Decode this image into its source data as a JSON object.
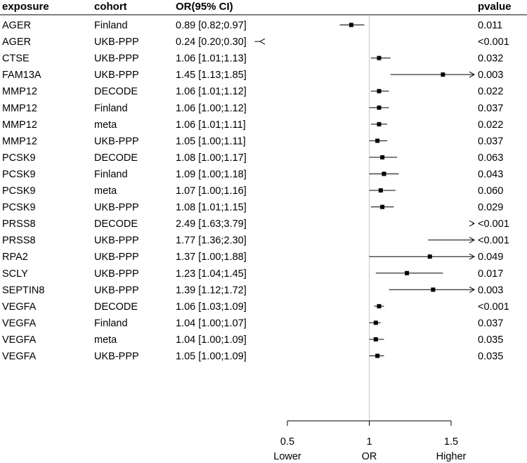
{
  "chart_data": {
    "type": "forest",
    "columns": {
      "exposure": "exposure",
      "cohort": "cohort",
      "estimate": "OR(95% CI)",
      "pvalue": "pvalue"
    },
    "rows": [
      {
        "exposure": "AGER",
        "cohort": "Finland",
        "or": 0.89,
        "lo": 0.82,
        "hi": 0.97,
        "text": "0.89 [0.82;0.97]",
        "pvalue": "0.011"
      },
      {
        "exposure": "AGER",
        "cohort": "UKB-PPP",
        "or": 0.24,
        "lo": 0.2,
        "hi": 0.3,
        "text": "0.24 [0.20;0.30]",
        "pvalue": "<0.001"
      },
      {
        "exposure": "CTSE",
        "cohort": "UKB-PPP",
        "or": 1.06,
        "lo": 1.01,
        "hi": 1.13,
        "text": "1.06 [1.01;1.13]",
        "pvalue": "0.032"
      },
      {
        "exposure": "FAM13A",
        "cohort": "UKB-PPP",
        "or": 1.45,
        "lo": 1.13,
        "hi": 1.85,
        "text": "1.45 [1.13;1.85]",
        "pvalue": "0.003"
      },
      {
        "exposure": "MMP12",
        "cohort": "DECODE",
        "or": 1.06,
        "lo": 1.01,
        "hi": 1.12,
        "text": "1.06 [1.01;1.12]",
        "pvalue": "0.022"
      },
      {
        "exposure": "MMP12",
        "cohort": "Finland",
        "or": 1.06,
        "lo": 1.0,
        "hi": 1.12,
        "text": "1.06 [1.00;1.12]",
        "pvalue": "0.037"
      },
      {
        "exposure": "MMP12",
        "cohort": "meta",
        "or": 1.06,
        "lo": 1.01,
        "hi": 1.11,
        "text": "1.06 [1.01;1.11]",
        "pvalue": "0.022"
      },
      {
        "exposure": "MMP12",
        "cohort": "UKB-PPP",
        "or": 1.05,
        "lo": 1.0,
        "hi": 1.11,
        "text": "1.05 [1.00;1.11]",
        "pvalue": "0.037"
      },
      {
        "exposure": "PCSK9",
        "cohort": "DECODE",
        "or": 1.08,
        "lo": 1.0,
        "hi": 1.17,
        "text": "1.08 [1.00;1.17]",
        "pvalue": "0.063"
      },
      {
        "exposure": "PCSK9",
        "cohort": "Finland",
        "or": 1.09,
        "lo": 1.0,
        "hi": 1.18,
        "text": "1.09 [1.00;1.18]",
        "pvalue": "0.043"
      },
      {
        "exposure": "PCSK9",
        "cohort": "meta",
        "or": 1.07,
        "lo": 1.0,
        "hi": 1.16,
        "text": "1.07 [1.00;1.16]",
        "pvalue": "0.060"
      },
      {
        "exposure": "PCSK9",
        "cohort": "UKB-PPP",
        "or": 1.08,
        "lo": 1.01,
        "hi": 1.15,
        "text": "1.08 [1.01;1.15]",
        "pvalue": "0.029"
      },
      {
        "exposure": "PRSS8",
        "cohort": "DECODE",
        "or": 2.49,
        "lo": 1.63,
        "hi": 3.79,
        "text": "2.49 [1.63;3.79]",
        "pvalue": "<0.001"
      },
      {
        "exposure": "PRSS8",
        "cohort": "UKB-PPP",
        "or": 1.77,
        "lo": 1.36,
        "hi": 2.3,
        "text": "1.77 [1.36;2.30]",
        "pvalue": "<0.001"
      },
      {
        "exposure": "RPA2",
        "cohort": "UKB-PPP",
        "or": 1.37,
        "lo": 1.0,
        "hi": 1.88,
        "text": "1.37 [1.00;1.88]",
        "pvalue": "0.049"
      },
      {
        "exposure": "SCLY",
        "cohort": "UKB-PPP",
        "or": 1.23,
        "lo": 1.04,
        "hi": 1.45,
        "text": "1.23 [1.04;1.45]",
        "pvalue": "0.017"
      },
      {
        "exposure": "SEPTIN8",
        "cohort": "UKB-PPP",
        "or": 1.39,
        "lo": 1.12,
        "hi": 1.72,
        "text": "1.39 [1.12;1.72]",
        "pvalue": "0.003"
      },
      {
        "exposure": "VEGFA",
        "cohort": "DECODE",
        "or": 1.06,
        "lo": 1.03,
        "hi": 1.09,
        "text": "1.06 [1.03;1.09]",
        "pvalue": "<0.001"
      },
      {
        "exposure": "VEGFA",
        "cohort": "Finland",
        "or": 1.04,
        "lo": 1.0,
        "hi": 1.07,
        "text": "1.04 [1.00;1.07]",
        "pvalue": "0.037"
      },
      {
        "exposure": "VEGFA",
        "cohort": "meta",
        "or": 1.04,
        "lo": 1.0,
        "hi": 1.09,
        "text": "1.04 [1.00;1.09]",
        "pvalue": "0.035"
      },
      {
        "exposure": "VEGFA",
        "cohort": "UKB-PPP",
        "or": 1.05,
        "lo": 1.0,
        "hi": 1.09,
        "text": "1.05 [1.00;1.09]",
        "pvalue": "0.035"
      }
    ],
    "xaxis": {
      "xlim": [
        0.5,
        1.5
      ],
      "ticks": [
        0.5,
        1,
        1.5
      ],
      "tick_labels": [
        "0.5",
        "1",
        "1.5"
      ],
      "reference": 1,
      "xlabel": "OR",
      "left_label": "Lower",
      "right_label": "Higher"
    },
    "grid": false
  }
}
